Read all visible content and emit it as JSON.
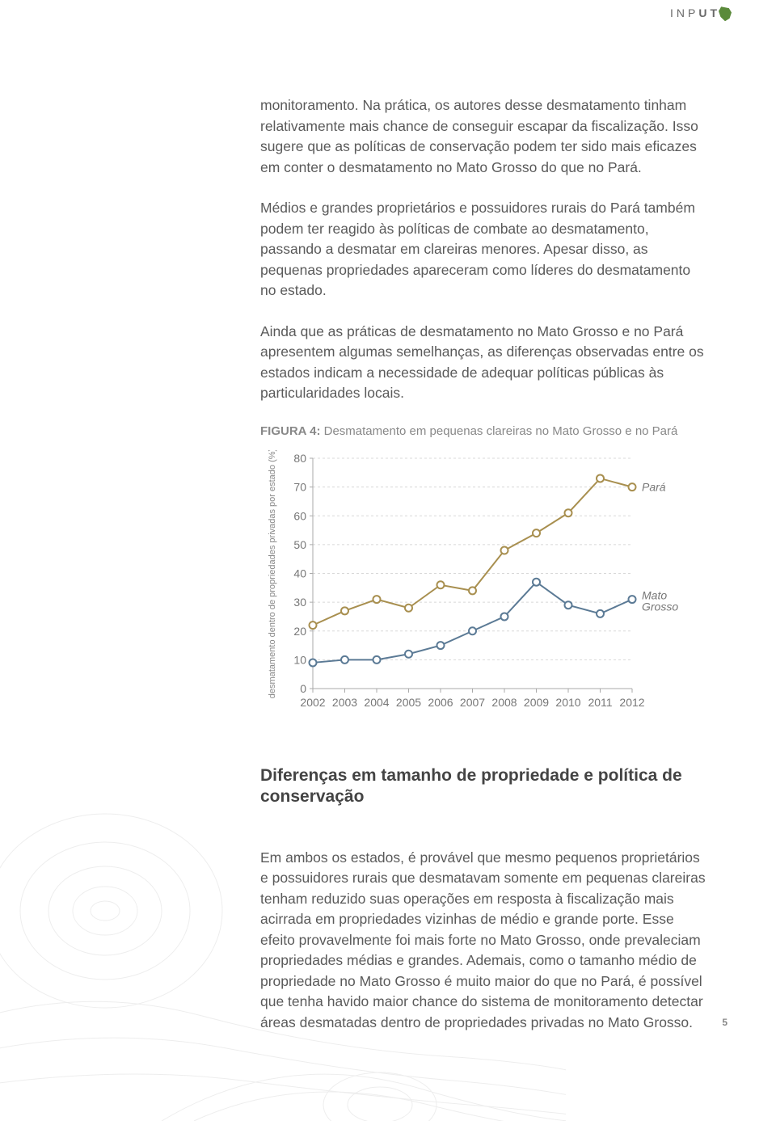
{
  "logo": {
    "part1": "INP",
    "part2": "UT"
  },
  "paragraphs": {
    "p1": "monitoramento. Na prática, os autores desse desmatamento tinham relativamente mais chance de conseguir escapar da fiscalização. Isso sugere que as políticas de conservação podem ter sido mais eficazes em conter o desmatamento no Mato Grosso do que no Pará.",
    "p2": "Médios e grandes proprietários e possuidores rurais do Pará também podem ter reagido às políticas de combate ao desmatamento, passando a desmatar em clareiras menores. Apesar disso, as pequenas propriedades apareceram como líderes do desmatamento no estado.",
    "p3": "Ainda que as práticas de desmatamento no Mato Grosso e no Pará apresentem algumas semelhanças, as diferenças observadas entre os estados indicam a necessidade de adequar políticas públicas às particularidades locais.",
    "p4": "Em ambos os estados, é provável que mesmo pequenos proprietários e possuidores rurais que desmatavam somente em pequenas clareiras tenham reduzido suas operações em resposta à fiscalização mais acirrada em propriedades vizinhas de médio e grande porte. Esse efeito provavelmente foi mais forte no Mato Grosso, onde prevaleciam propriedades médias e grandes. Ademais, como o tamanho médio de propriedade no Mato Grosso é muito maior do que no Pará, é possível que tenha havido maior chance do sistema de monitoramento detectar áreas desmatadas dentro de propriedades privadas no Mato Grosso."
  },
  "figure": {
    "label": "FIGURA 4:",
    "caption": "Desmatamento em pequenas clareiras no Mato Grosso e no Pará"
  },
  "section_title": "Diferenças em tamanho de propriedade e política de conservação",
  "page_number": "5",
  "chart": {
    "type": "line",
    "y_label": "desmatamento dentro de propriedades privadas por estado (%)",
    "y_ticks": [
      0,
      10,
      20,
      30,
      40,
      50,
      60,
      70,
      80
    ],
    "x_ticks": [
      "2002",
      "2003",
      "2004",
      "2005",
      "2006",
      "2007",
      "2008",
      "2009",
      "2010",
      "2011",
      "2012"
    ],
    "xlim": [
      2002,
      2012
    ],
    "ylim": [
      0,
      80
    ],
    "grid_color": "#d8d8d8",
    "axis_color": "#aaaaaa",
    "background_color": "#ffffff",
    "tick_fontsize": 14,
    "label_fontsize": 11,
    "marker_size": 4.5,
    "line_width": 2,
    "series": [
      {
        "name": "Pará",
        "label": "Pará",
        "label_fontstyle": "italic",
        "color": "#a88f4f",
        "values": [
          22,
          27,
          31,
          28,
          36,
          34,
          48,
          54,
          61,
          73,
          70
        ]
      },
      {
        "name": "Mato Grosso",
        "label": "Mato Grosso",
        "label_fontstyle": "italic",
        "color": "#5b7a95",
        "values": [
          9,
          10,
          10,
          12,
          15,
          20,
          25,
          37,
          29,
          26,
          31
        ]
      }
    ]
  }
}
